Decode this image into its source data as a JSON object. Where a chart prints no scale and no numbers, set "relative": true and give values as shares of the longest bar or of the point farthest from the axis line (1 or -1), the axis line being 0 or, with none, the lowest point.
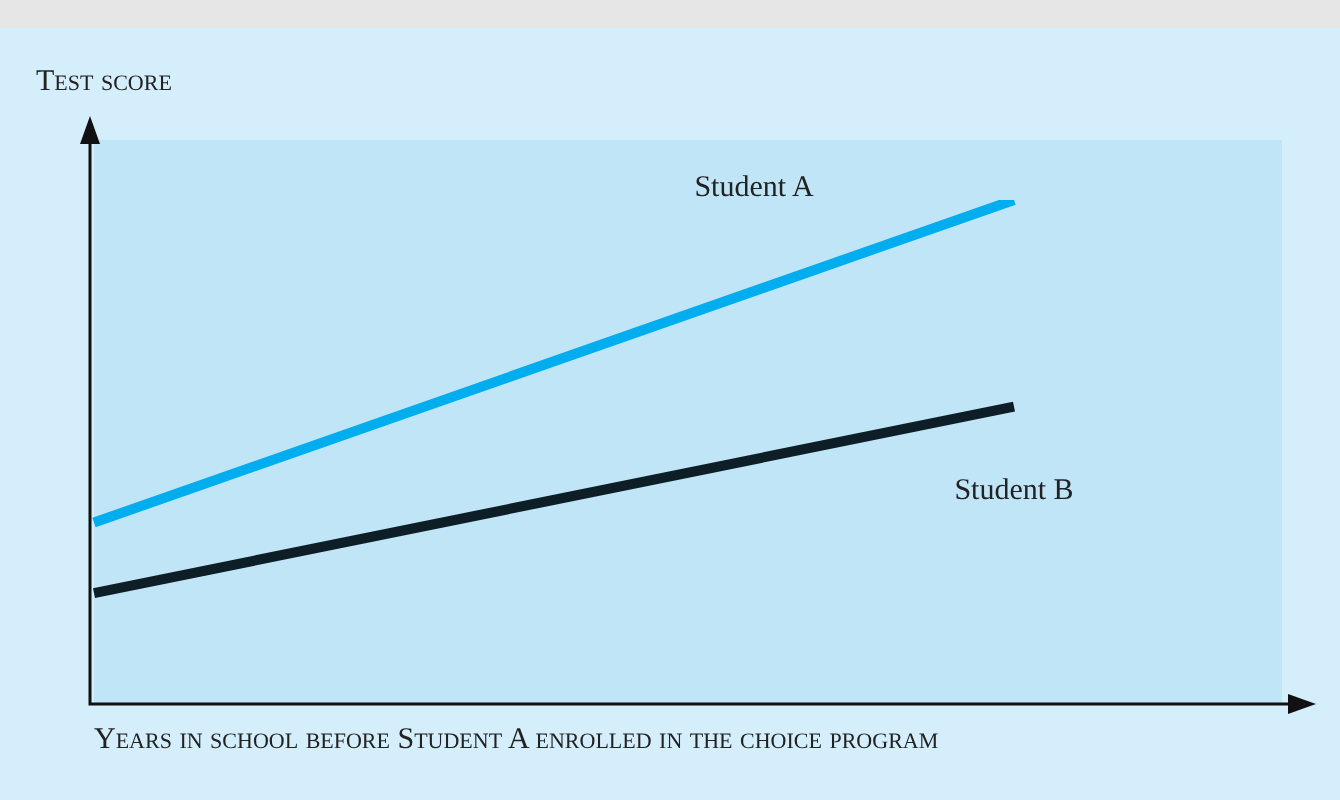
{
  "chart_data": {
    "type": "line",
    "relative": true,
    "xlabel": "Years in school before Student A enrolled in the choice program",
    "ylabel": "Test score",
    "categories": [
      null,
      null
    ],
    "marker": "none",
    "line_style": "solid",
    "series": [
      {
        "name": "Student A",
        "color": "#00aeef",
        "values": [
          0.36,
          1
        ]
      },
      {
        "name": "Student B",
        "color": "#0d1e26",
        "values": [
          0.22,
          0.59
        ]
      }
    ]
  }
}
